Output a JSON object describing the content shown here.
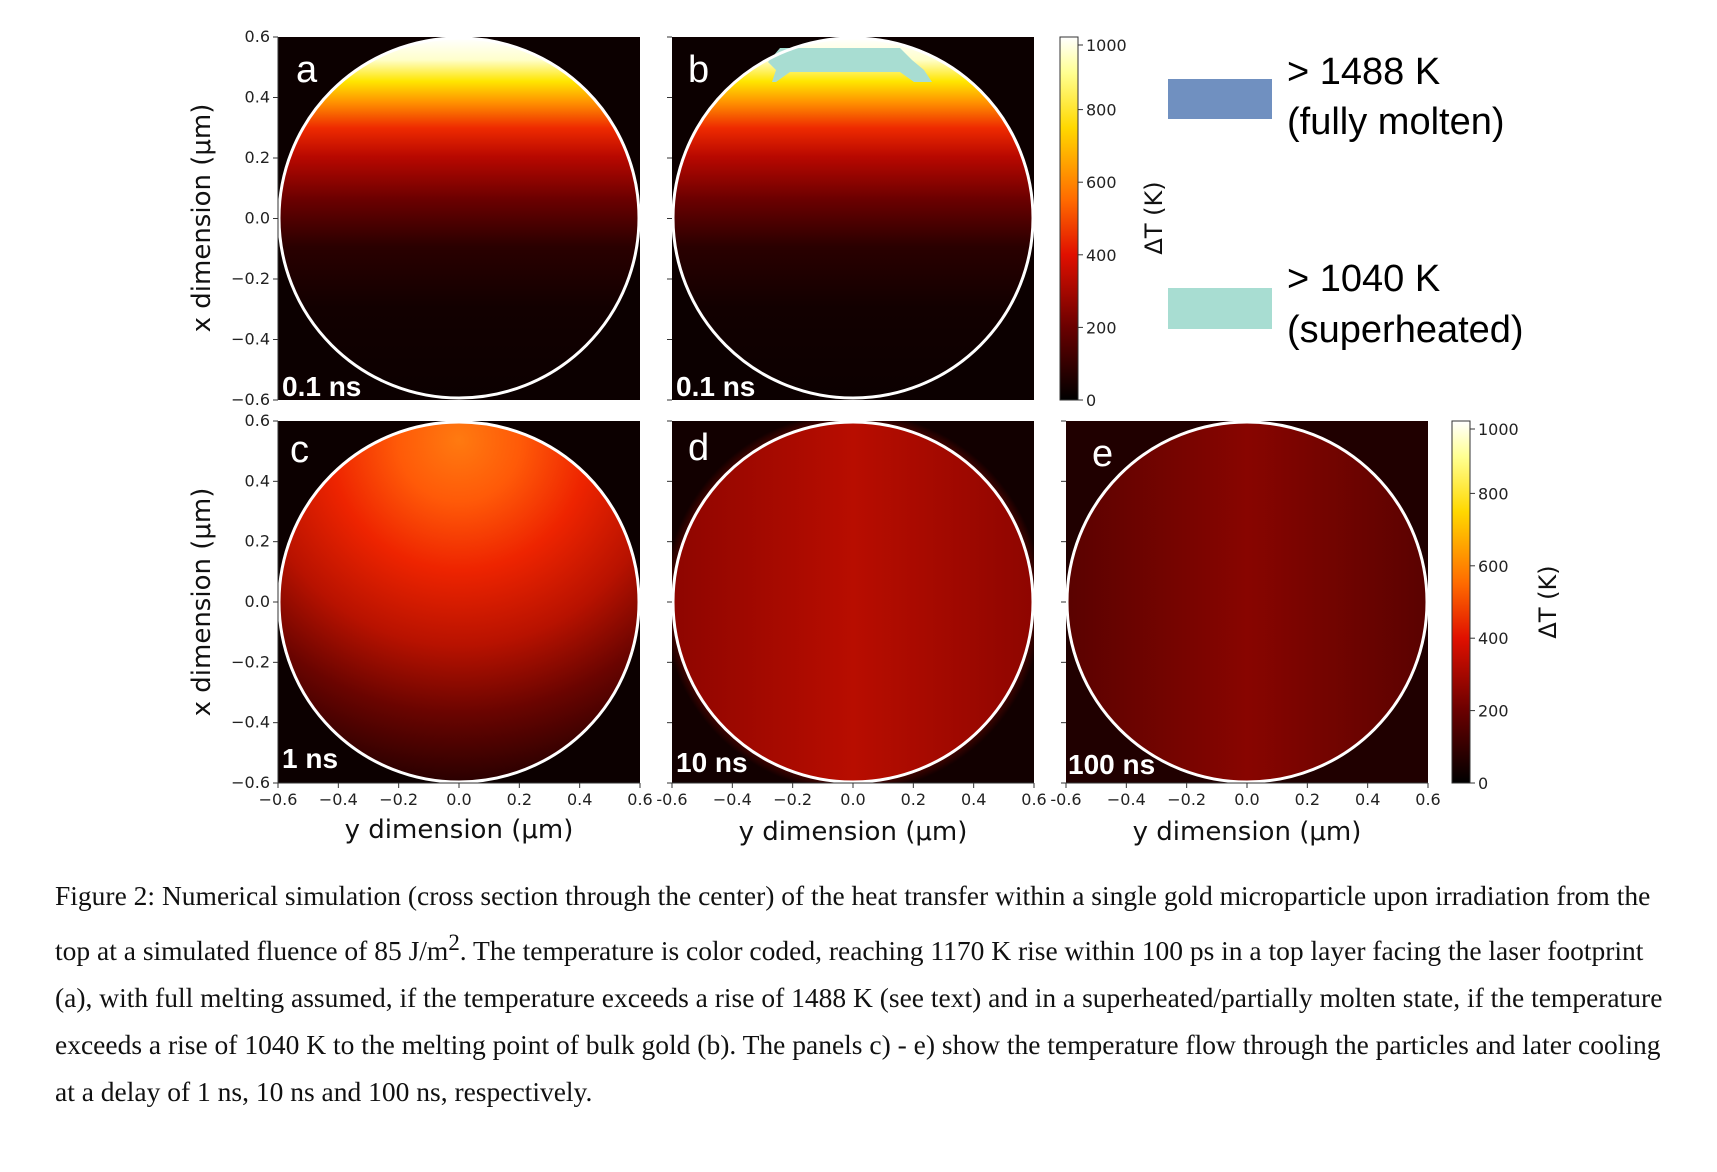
{
  "figure": {
    "panels": [
      {
        "letter": "a",
        "time": "0.1 ns",
        "mode": "hot",
        "peak_dT": 1000,
        "superheated_region": false
      },
      {
        "letter": "b",
        "time": "0.1 ns",
        "mode": "hot",
        "peak_dT": 1000,
        "superheated_region": true
      },
      {
        "letter": "c",
        "time": "1 ns",
        "mode": "warm",
        "peak_dT": 560
      },
      {
        "letter": "d",
        "time": "10 ns",
        "mode": "uniform",
        "peak_dT": 265
      },
      {
        "letter": "e",
        "time": "100 ns",
        "mode": "cooler",
        "peak_dT": 195
      }
    ],
    "ticks": [
      "0.6",
      "0.4",
      "0.2",
      "0.0",
      "−0.2",
      "−0.4",
      "−0.6"
    ],
    "top_row_ticks": [
      "0.6",
      "0.4",
      "0.2",
      "0.0",
      "−0.2",
      "−0.4",
      "−0.6"
    ],
    "x_ticks_row2": [
      "−0.6",
      "−0.4",
      "−0.2",
      "0.0",
      "0.2",
      "0.4",
      "0.6"
    ],
    "x_ticks_row2_rest": [
      "-0.6",
      "−0.4",
      "−0.2",
      "0.0",
      "0.2",
      "0.4",
      "0.6"
    ],
    "x_axis_label": "y dimension (μm)",
    "y_axis_label": "x dimension (μm)",
    "colorbar": {
      "label": "ΔT (K)",
      "ticks": [
        "1000",
        "800",
        "600",
        "400",
        "200",
        "0"
      ],
      "range": [
        0,
        1000
      ]
    },
    "legend": [
      {
        "line1": "> 1488 K",
        "line2": "(fully molten)",
        "color": "#7090c0"
      },
      {
        "line1": "> 1040 K",
        "line2": "(superheated)",
        "color": "#a8ddd2"
      }
    ]
  },
  "caption": {
    "prefix": "Figure 2: Numerical simulation (cross section through the center) of the heat transfer within a single gold microparticle upon irradiation from the top at a simulated fluence of 85 J/m",
    "superscript": "2",
    "suffix": ". The temperature is color coded, reaching 1170 K rise within 100 ps in a top layer facing the laser footprint (a), with full melting assumed, if the temperature exceeds a rise of 1488 K (see text) and in a superheated/partially molten state, if the temperature exceeds a rise of 1040 K to the melting point of bulk gold (b). The panels c) - e) show the temperature flow through the particles and later cooling at a delay of 1 ns, 10 ns and 100 ns, respectively."
  }
}
